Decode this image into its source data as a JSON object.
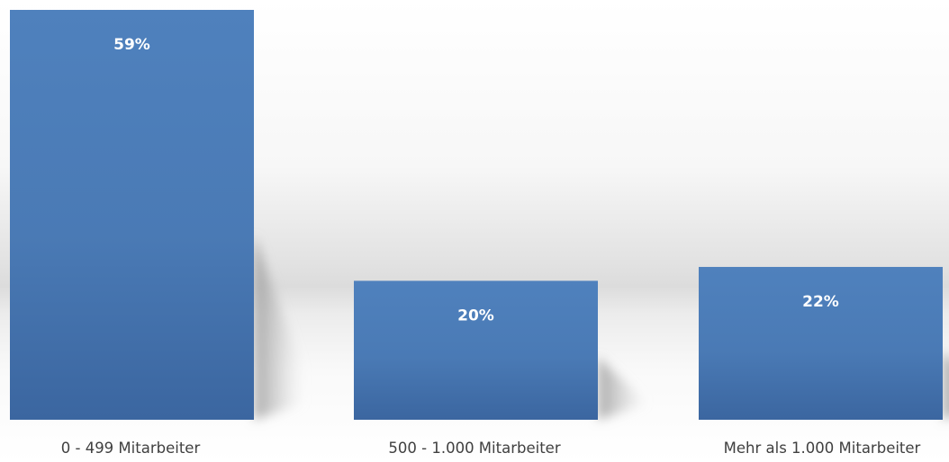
{
  "chart_data": {
    "type": "bar",
    "categories": [
      "0 - 499 Mitarbeiter",
      "500 - 1.000 Mitarbeiter",
      "Mehr als 1.000 Mitarbeiter"
    ],
    "values": [
      59,
      20,
      22
    ],
    "data_labels": [
      "59%",
      "20%",
      "22%"
    ],
    "ylim": [
      0,
      60
    ],
    "grid": false,
    "legend": "none",
    "bar_color": "#4f81bd"
  }
}
